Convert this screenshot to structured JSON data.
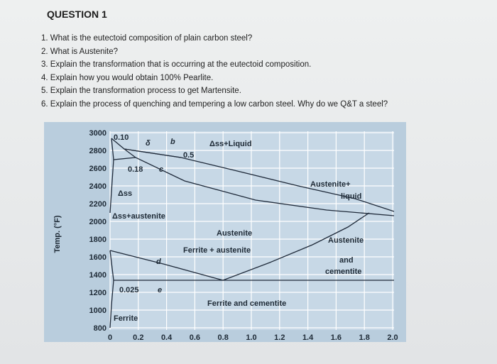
{
  "header": {
    "title": "QUESTION 1"
  },
  "questions": [
    "1. What is the eutectoid composition of plain carbon steel?",
    "2. What is Austenite?",
    "3. Explain the transformation that is occurring at the eutectoid composition.",
    "4. Explain how you would obtain 100% Pearlite.",
    "5.  Explain the transformation process to get Martensite.",
    "6. Explain the process of quenching and tempering a low carbon steel. Why do we Q&T a steel?"
  ],
  "diagram": {
    "y_axis_label": "Temp. (°F)",
    "y_ticks": [
      "3000",
      "2800",
      "2600",
      "2400",
      "2200",
      "2000",
      "1800",
      "1600",
      "1400",
      "1200",
      "1000",
      "800"
    ],
    "x_ticks": [
      "0",
      "0.2",
      "0.4",
      "0.6",
      "0.8",
      "1.0",
      "1.2",
      "1.4",
      "1.6",
      "1.8",
      "2.0"
    ],
    "labels": {
      "p010": "0.10",
      "delta": "δ",
      "b": "b",
      "liquid": "Δss+Liquid",
      "p05": "0.5",
      "p018": "0.18",
      "c": "c",
      "aust_liquid_1": "Austenite+",
      "aust_liquid_2": "liquid",
      "dss": "Δss",
      "dss_aust": "Δss+austenite",
      "austenite": "Austenite",
      "ferr_aust": "Ferrite + austenite",
      "aust_cem_1": "Austenite",
      "aust_cem_2": "and",
      "aust_cem_3": "cementite",
      "d": "d",
      "p0025": "0.025",
      "e": "e",
      "ferr_cem": "Ferrite and cementite",
      "ferrite": "Ferrite"
    }
  }
}
